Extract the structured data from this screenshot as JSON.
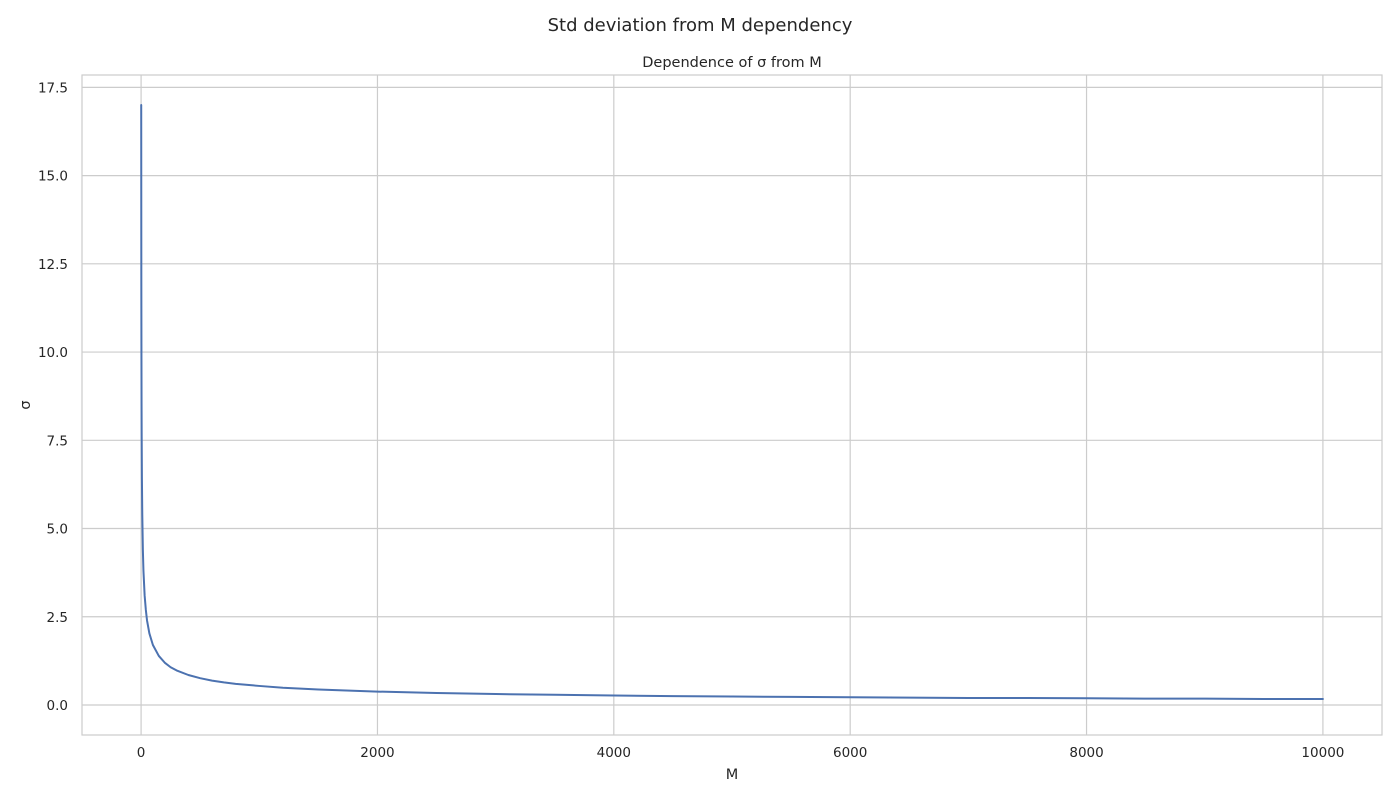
{
  "figure": {
    "suptitle": "Std deviation from M dependency"
  },
  "chart_data": {
    "type": "line",
    "title": "Dependence of σ from M",
    "xlabel": "M",
    "ylabel": "σ",
    "xlim": [
      -500,
      10500
    ],
    "ylim": [
      -0.85,
      17.85
    ],
    "x_ticks": [
      0,
      2000,
      4000,
      6000,
      8000,
      10000
    ],
    "x_tick_labels": [
      "0",
      "2000",
      "4000",
      "6000",
      "8000",
      "10000"
    ],
    "y_ticks": [
      0.0,
      2.5,
      5.0,
      7.5,
      10.0,
      12.5,
      15.0,
      17.5
    ],
    "y_tick_labels": [
      "0.0",
      "2.5",
      "5.0",
      "7.5",
      "10.0",
      "12.5",
      "15.0",
      "17.5"
    ],
    "grid": true,
    "series_color": "#4c72b0",
    "grid_color": "#cccccc",
    "spine_color": "#cccccc",
    "series": [
      {
        "x": [
          1,
          2,
          3,
          4,
          5,
          7,
          10,
          15,
          20,
          30,
          40,
          50,
          70,
          100,
          150,
          200,
          250,
          300,
          400,
          500,
          600,
          700,
          800,
          900,
          1000,
          1200,
          1500,
          2000,
          2500,
          3000,
          3500,
          4000,
          4500,
          5000,
          5500,
          6000,
          6500,
          7000,
          7500,
          8000,
          8500,
          9000,
          9500,
          10000
        ],
        "y": [
          17.0,
          12.0,
          9.8,
          8.5,
          7.6,
          6.4,
          5.4,
          4.4,
          3.8,
          3.1,
          2.7,
          2.4,
          2.03,
          1.7,
          1.39,
          1.2,
          1.07,
          0.98,
          0.85,
          0.76,
          0.69,
          0.64,
          0.6,
          0.57,
          0.54,
          0.49,
          0.44,
          0.38,
          0.34,
          0.31,
          0.29,
          0.27,
          0.25,
          0.24,
          0.23,
          0.22,
          0.21,
          0.2,
          0.2,
          0.19,
          0.18,
          0.18,
          0.17,
          0.17
        ]
      }
    ]
  }
}
